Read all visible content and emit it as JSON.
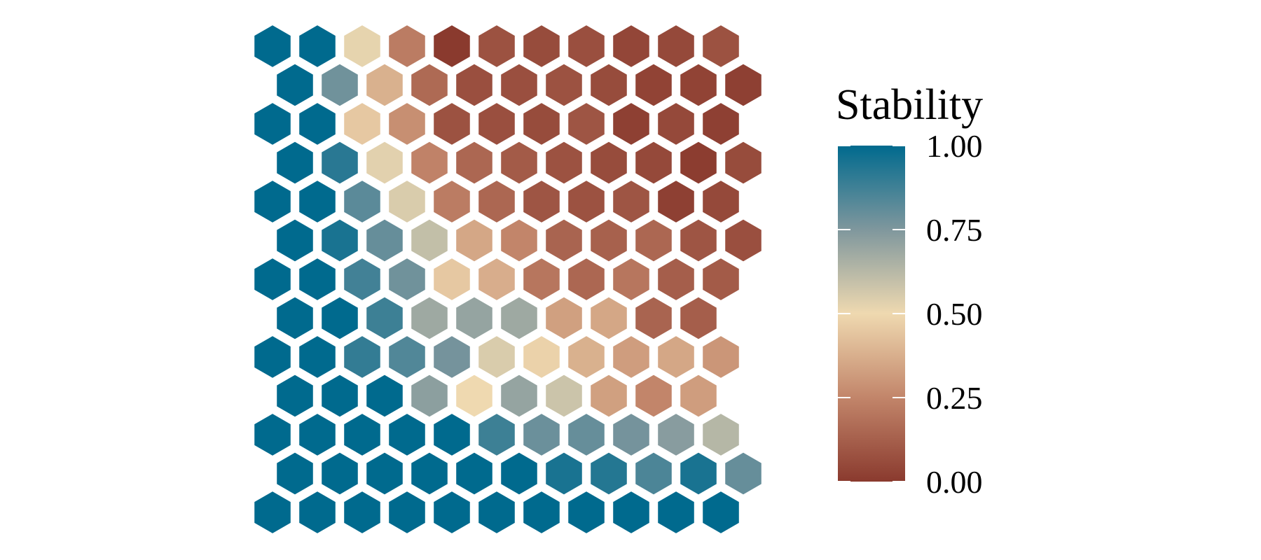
{
  "chart_data": {
    "type": "heatmap",
    "subtype": "hexagonal-grid",
    "title": "",
    "xlabel": "",
    "ylabel": "",
    "legend": {
      "title": "Stability",
      "placement": "right",
      "ticks": [
        {
          "value": 1.0,
          "label": "1.00"
        },
        {
          "value": 0.75,
          "label": "0.75"
        },
        {
          "value": 0.5,
          "label": "0.50"
        },
        {
          "value": 0.25,
          "label": "0.25"
        },
        {
          "value": 0.0,
          "label": "0.00"
        }
      ],
      "range": [
        0,
        1
      ]
    },
    "color_scale": {
      "stops": [
        {
          "value": 0.0,
          "color": "#8a3a2e"
        },
        {
          "value": 0.25,
          "color": "#c2856a"
        },
        {
          "value": 0.5,
          "color": "#efd9b0"
        },
        {
          "value": 0.75,
          "color": "#7f979d"
        },
        {
          "value": 1.0,
          "color": "#006a8e"
        }
      ]
    },
    "grid": {
      "rows": 13,
      "odd_row_offset": true
    },
    "rows": [
      [
        1.0,
        1.0,
        0.52,
        0.22,
        0.0,
        0.08,
        0.06,
        0.07,
        0.04,
        0.05,
        0.08
      ],
      [
        1.0,
        0.78,
        0.38,
        0.16,
        0.07,
        0.07,
        0.08,
        0.06,
        0.03,
        0.03,
        0.02
      ],
      [
        1.0,
        1.0,
        0.45,
        0.28,
        0.08,
        0.07,
        0.06,
        0.09,
        0.02,
        0.05,
        0.02
      ],
      [
        1.0,
        0.92,
        0.53,
        0.24,
        0.15,
        0.11,
        0.08,
        0.06,
        0.05,
        0.01,
        0.06
      ],
      [
        1.0,
        1.0,
        0.82,
        0.55,
        0.22,
        0.15,
        0.09,
        0.08,
        0.09,
        0.02,
        0.05
      ],
      [
        1.0,
        0.95,
        0.8,
        0.6,
        0.35,
        0.25,
        0.14,
        0.13,
        0.15,
        0.09,
        0.07
      ],
      [
        1.0,
        1.0,
        0.87,
        0.78,
        0.45,
        0.37,
        0.2,
        0.15,
        0.2,
        0.12,
        0.11
      ],
      [
        1.0,
        1.0,
        0.88,
        0.68,
        0.7,
        0.68,
        0.33,
        0.35,
        0.14,
        0.12
      ],
      [
        1.0,
        1.0,
        0.9,
        0.84,
        0.77,
        0.55,
        0.48,
        0.38,
        0.32,
        0.35,
        0.3
      ],
      [
        1.0,
        1.0,
        1.0,
        0.72,
        0.5,
        0.7,
        0.58,
        0.33,
        0.25,
        0.32
      ],
      [
        1.0,
        1.0,
        1.0,
        1.0,
        1.0,
        0.88,
        0.79,
        0.8,
        0.77,
        0.73,
        0.63
      ],
      [
        1.0,
        1.0,
        1.0,
        1.0,
        1.0,
        1.0,
        0.95,
        0.93,
        0.85,
        0.95,
        0.8
      ],
      [
        1.0,
        1.0,
        1.0,
        1.0,
        1.0,
        1.0,
        1.0,
        1.0,
        1.0,
        1.0,
        1.0
      ]
    ]
  }
}
